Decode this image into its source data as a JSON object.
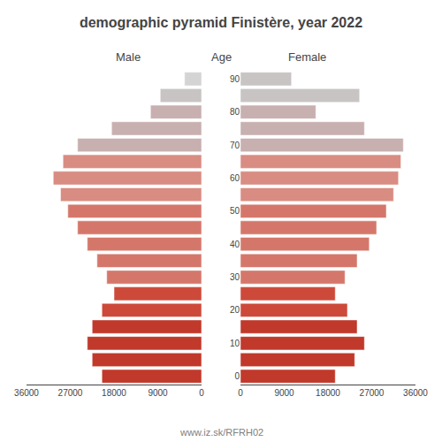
{
  "chart_data": {
    "type": "bar",
    "orientation": "horizontal",
    "title": "demographic pyramid Finistère, year 2022",
    "ylabel": "Age",
    "annotations": [
      "www.iz.sk/RFRH02"
    ],
    "categories": [
      "0",
      null,
      "10",
      null,
      "20",
      null,
      "30",
      null,
      "40",
      null,
      "50",
      null,
      "60",
      null,
      "70",
      null,
      "80",
      null,
      "90"
    ],
    "series": [
      {
        "name": "Male",
        "colors": [
          "#c0392b",
          "#c0392b",
          "#c0392b",
          "#c0392b",
          "#cd4a3a",
          "#cd4a3a",
          "#d4776a",
          "#d4776a",
          "#d4776a",
          "#d4776a",
          "#d4776a",
          "#d98c82",
          "#d98c82",
          "#d98c82",
          "#c8b0b0",
          "#c8b0b0",
          "#c8b0b0",
          "#c8c4c4",
          "#d4d4d4"
        ],
        "values": [
          20500,
          22500,
          23500,
          22500,
          20500,
          18000,
          19500,
          21500,
          23500,
          25500,
          27500,
          29000,
          30500,
          28500,
          25500,
          18500,
          10500,
          8500,
          3500
        ]
      },
      {
        "name": "Female",
        "colors": [
          "#c0392b",
          "#c0392b",
          "#c0392b",
          "#c0392b",
          "#cd4a3a",
          "#cd4a3a",
          "#d4776a",
          "#d4776a",
          "#d4776a",
          "#d4776a",
          "#d4776a",
          "#d98c82",
          "#d98c82",
          "#d98c82",
          "#c8b0b0",
          "#c8b0b0",
          "#c8b0b0",
          "#c8c4c4",
          "#c8c4c4"
        ],
        "values": [
          19500,
          23500,
          25500,
          24000,
          22000,
          19500,
          21500,
          24000,
          26500,
          28000,
          30000,
          31500,
          32500,
          33000,
          33500,
          25500,
          15500,
          24500,
          10500
        ]
      }
    ],
    "xlim": [
      0,
      36000
    ],
    "xticks": [
      0,
      9000,
      18000,
      27000,
      36000
    ],
    "grid": false
  }
}
